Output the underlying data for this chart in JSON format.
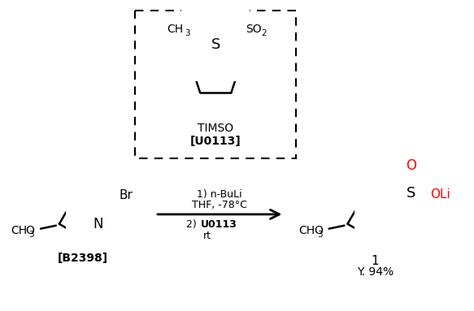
{
  "bg_color": "#ffffff",
  "timso_label": "TIMSO",
  "timso_code": "[U0113]",
  "reagent_line1": "1) n-BuLi",
  "reagent_line2": "THF, -78°C",
  "reagent_line3": "2) ",
  "reagent_line3b": "U0113",
  "reagent_line4": "rt",
  "product_label": "1",
  "product_yield": "Y. 94%",
  "reactant_label": "[B2398]"
}
